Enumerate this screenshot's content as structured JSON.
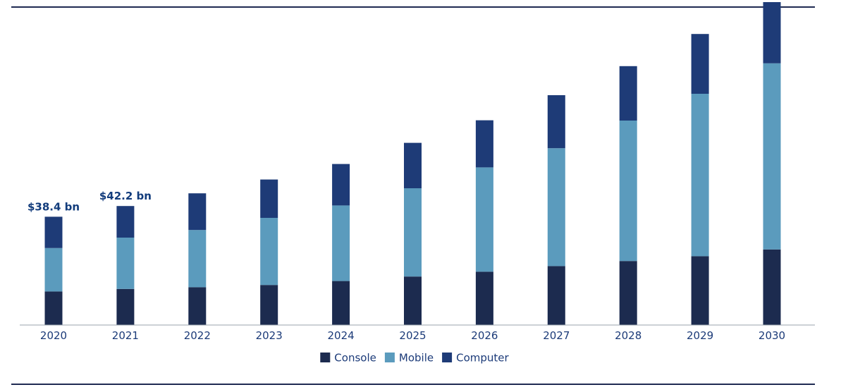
{
  "chart_data": {
    "type": "bar",
    "stacked": true,
    "title": "",
    "xlabel": "",
    "ylabel": "",
    "categories": [
      "2020",
      "2021",
      "2022",
      "2023",
      "2024",
      "2025",
      "2026",
      "2027",
      "2028",
      "2029",
      "2030"
    ],
    "series": [
      {
        "name": "Console",
        "color": "#1c2b4f",
        "values": [
          11.9,
          12.8,
          13.4,
          14.2,
          15.6,
          17.2,
          18.9,
          20.9,
          22.7,
          24.4,
          26.8
        ]
      },
      {
        "name": "Mobile",
        "color": "#5b9bbd",
        "values": [
          15.4,
          18.2,
          20.3,
          23.8,
          26.8,
          31.3,
          37.0,
          41.8,
          49.8,
          57.6,
          66.0
        ]
      },
      {
        "name": "Computer",
        "color": "#1e3b77",
        "values": [
          11.1,
          11.2,
          13.0,
          13.6,
          14.7,
          16.1,
          16.7,
          18.8,
          19.3,
          21.2,
          21.7
        ]
      }
    ],
    "data_labels": [
      {
        "category": "2020",
        "text": "$38.4 bn"
      },
      {
        "category": "2021",
        "text": "$42.2 bn"
      }
    ],
    "ylim": [
      0,
      115
    ],
    "grid": false,
    "legend_position": "bottom-center"
  }
}
